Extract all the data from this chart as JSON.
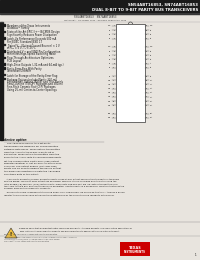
{
  "title_line1": "SN54ABT16853, SN74ABT16853",
  "title_line2": "DUAL 8-BIT TO 9-BIT PARITY BUS TRANSCEIVERS",
  "bg_color": "#e8e4de",
  "header_bar_color": "#1a1a1a",
  "sub_header": "SN54ABT16853    SN74ABT16853",
  "sub_header2": "SDAS058A - OCTOBER 1993 - REVISED FEBRUARY 1995",
  "bullet_points": [
    [
      "Members of the Texas Instruments",
      "Widebus™ Family"
    ],
    [
      "State-of-the-Art EPIC-II+™ BiCMOS Design",
      "Significantly Reduces Power Dissipation"
    ],
    [
      "Latch-Up Performance Exceeds 500 mA",
      "Per JEDEC Standard JESD 17"
    ],
    [
      "Typical Vₒₓ (Output Ground Bounce) < 1 V",
      "at Vₒ₃ = 5 V, Tₓ = 25°C"
    ],
    [
      "Distributed V⁃⁃ and GND Pin Configuration",
      "Minimizes High-Speed Switching Noise"
    ],
    [
      "Flow-Through Architecture Optimizes",
      "PCB Layout"
    ],
    [
      "High-Drive Outputs (–32-mA and 64-mA typ.)"
    ],
    [
      "Parity-Error Flag With Parity",
      "Generation/Checker"
    ],
    [
      "Latch for Storage of the Parity-Error Flag"
    ],
    [
      "Package Options Include Plastic 300-mil",
      "Shrink Small-Outline (SSOP) and Thin Shrink",
      "Small-Outline (TSSOP) Packages and 380-mil",
      "Fine-Pitch Ceramic Flat (CFP) Packages",
      "Using 25-mil Center-to-Center Spacings"
    ]
  ],
  "section_title": "device option",
  "body_text": [
    "    The ABT16853 dual 8- to 9-bit parity",
    "transceivers are designed for communication",
    "between data buses. When data is transmitted",
    "from the A bus to the B bus, a parity bit is",
    "generated. When data is transmitted from the",
    "B bus to the A bus, with its corresponding parity",
    "bit, the accumulation parity error (SPE) output",
    "indicates whether or not an error or errors have",
    "occurred. The output enable (OEA and OEB)",
    "inputs can be used to disable the device so that",
    "the buses can effectively isolate the ABT16853",
    "prioritized data of the output."
  ],
  "body_text2": [
    "    A bus parity generator/checker generates parity called PARITY output and monitors the parity of the B bus",
    "and the EPflag. The parity error output can be passed, sampled, stored or cleared from the latch using the",
    "latch enable (LE) and clear (CLR) control inputs. When both OEB and OEA are low, data is transmitted from",
    "the A bus to the B bus, and simultaneously is generated, inverted parity in a forced-error condition that gives the",
    "designer more system diagnostic capability."
  ],
  "body_text3": [
    "    To ensure the high-impedance state during power-up or power-down, OE should be tied to V⁃⁃ through a pullup",
    "resistor; the minimum value of the resistor is determined by the current sinking capability of the driver."
  ],
  "footer_warning1": "Please be aware that an important notice concerning availability, standard warranty, and use in critical applications of",
  "footer_warning2": "Texas Instruments semiconductor products and disclaimers thereto appears at the end of this data sheet.",
  "footer_trademark": "EPIC-II+™ is a trademark of Texas Instruments Incorporated.",
  "footer_note1": "SOME PART NUMBERS AND SPECIFICATIONS MAY HAVE CHANGED. PLEASE VERIFY CURRENT",
  "footer_note2": "INFORMATION AT HTTP://WWW.TI.COM BEFORE PLACING YOUR ORDER.",
  "copyright": "Copyright © 1995, Texas Instruments Incorporated",
  "page_num": "1",
  "ti_logo_color": "#cc0000",
  "left_pins": [
    "OE8",
    "1B",
    "2B",
    "3B",
    "PARITY",
    "OE8",
    "4B",
    "5B",
    "6B",
    "7B",
    "8B",
    "OE8",
    "9B",
    "10B",
    "11B",
    "12B",
    "13B",
    "14B",
    "15B",
    "16B",
    "OE8",
    "17B",
    "18B"
  ],
  "right_pins": [
    "OE8",
    "1A",
    "2A",
    "3A",
    "PARITY",
    "OE8",
    "4A",
    "5A",
    "6A",
    "7A",
    "8A",
    "OE8",
    "9A",
    "10A",
    "11A",
    "12A",
    "13A",
    "14A",
    "15A",
    "16A",
    "OE8",
    "17A",
    "18A"
  ],
  "pin_numbers_left": [
    "1",
    "2",
    "3",
    "4",
    "",
    "5",
    "6",
    "7",
    "8",
    "9",
    "10",
    "",
    "11",
    "12",
    "13",
    "14",
    "15",
    "16",
    "17",
    "18",
    "",
    "19",
    "20"
  ],
  "pin_numbers_right": [
    "48",
    "47",
    "46",
    "45",
    "",
    "44",
    "43",
    "42",
    "41",
    "40",
    "39",
    "",
    "38",
    "37",
    "36",
    "35",
    "34",
    "33",
    "32",
    "31",
    "",
    "30",
    "29"
  ]
}
